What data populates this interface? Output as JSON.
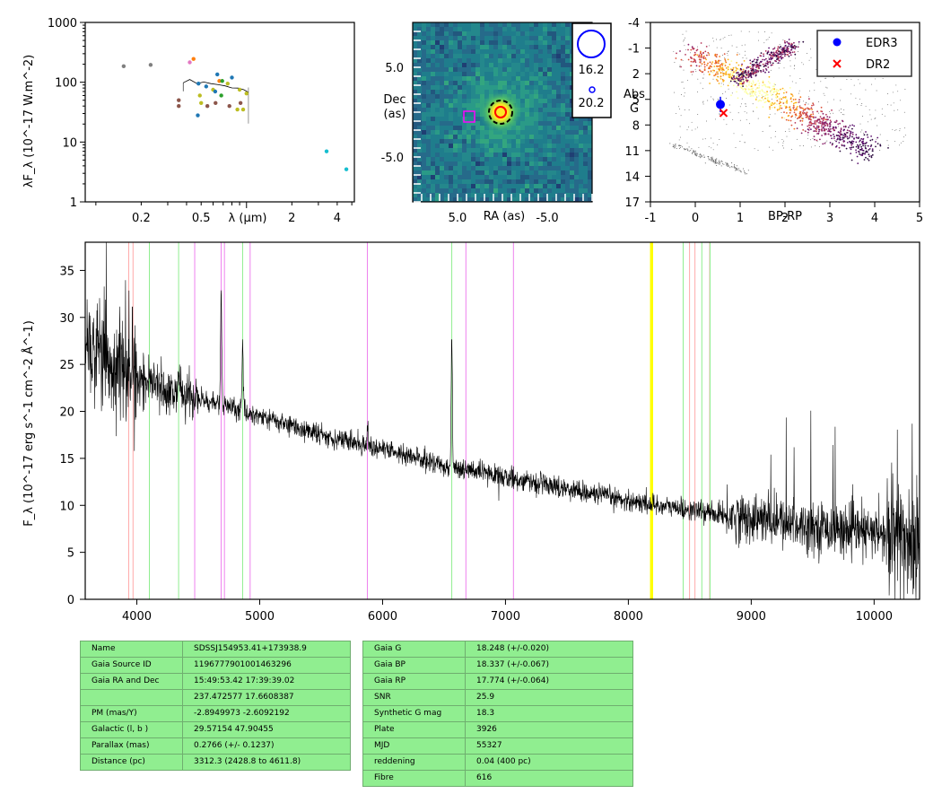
{
  "chart_data": [
    {
      "type": "scatter",
      "id": "sed",
      "title": "",
      "xlabel": "λ (μm)",
      "ylabel": "λF_λ (10^-17 W.m^-2)",
      "xscale": "log",
      "yscale": "log",
      "xlim": [
        0.085,
        5.2
      ],
      "ylim": [
        1,
        1000
      ],
      "xticks": [
        {
          "v": 0.2,
          "label": "0.2"
        },
        {
          "v": 0.5,
          "label": "0.5"
        },
        {
          "v": 2,
          "label": "2"
        },
        {
          "v": 4,
          "label": "4"
        }
      ],
      "yticks": [
        {
          "v": 1,
          "label": "1"
        },
        {
          "v": 10,
          "label": "10"
        },
        {
          "v": 100,
          "label": "100"
        },
        {
          "v": 1000,
          "label": "1000"
        }
      ],
      "points": [
        {
          "x": 0.153,
          "y": 185,
          "color": "#7f7f7f"
        },
        {
          "x": 0.231,
          "y": 195,
          "color": "#7f7f7f"
        },
        {
          "x": 0.355,
          "y": 50,
          "color": "#8c564b"
        },
        {
          "x": 0.355,
          "y": 40,
          "color": "#8c564b"
        },
        {
          "x": 0.42,
          "y": 215,
          "color": "#e377c2"
        },
        {
          "x": 0.445,
          "y": 245,
          "color": "#ff7f0e"
        },
        {
          "x": 0.475,
          "y": 28,
          "color": "#1f77b4"
        },
        {
          "x": 0.48,
          "y": 95,
          "color": "#1f77b4"
        },
        {
          "x": 0.49,
          "y": 60,
          "color": "#bcbd22"
        },
        {
          "x": 0.5,
          "y": 45,
          "color": "#bcbd22"
        },
        {
          "x": 0.54,
          "y": 85,
          "color": "#1f77b4"
        },
        {
          "x": 0.55,
          "y": 40,
          "color": "#8c564b"
        },
        {
          "x": 0.6,
          "y": 75,
          "color": "#bcbd22"
        },
        {
          "x": 0.62,
          "y": 70,
          "color": "#1f77b4"
        },
        {
          "x": 0.623,
          "y": 45,
          "color": "#8c564b"
        },
        {
          "x": 0.64,
          "y": 135,
          "color": "#1f77b4"
        },
        {
          "x": 0.66,
          "y": 105,
          "color": "#ff7f0e"
        },
        {
          "x": 0.68,
          "y": 60,
          "color": "#2ca02c"
        },
        {
          "x": 0.69,
          "y": 105,
          "color": "#2ca02c"
        },
        {
          "x": 0.75,
          "y": 95,
          "color": "#bcbd22"
        },
        {
          "x": 0.77,
          "y": 40,
          "color": "#8c564b"
        },
        {
          "x": 0.8,
          "y": 120,
          "color": "#1f77b4"
        },
        {
          "x": 0.87,
          "y": 35,
          "color": "#bcbd22"
        },
        {
          "x": 0.9,
          "y": 75,
          "color": "#bcbd22"
        },
        {
          "x": 0.913,
          "y": 45,
          "color": "#8c564b"
        },
        {
          "x": 0.95,
          "y": 35,
          "color": "#bcbd22"
        },
        {
          "x": 1.0,
          "y": 65,
          "color": "#bcbd22"
        },
        {
          "x": 3.4,
          "y": 7,
          "color": "#17becf"
        },
        {
          "x": 4.6,
          "y": 3.5,
          "color": "#17becf"
        }
      ],
      "line_series": [
        {
          "x": 0.38,
          "y": 98
        },
        {
          "x": 0.42,
          "y": 110
        },
        {
          "x": 0.47,
          "y": 96
        },
        {
          "x": 0.52,
          "y": 100
        },
        {
          "x": 0.58,
          "y": 92
        },
        {
          "x": 0.65,
          "y": 90
        },
        {
          "x": 0.72,
          "y": 86
        },
        {
          "x": 0.8,
          "y": 82
        },
        {
          "x": 0.88,
          "y": 78
        },
        {
          "x": 0.96,
          "y": 74
        },
        {
          "x": 1.03,
          "y": 68
        }
      ]
    },
    {
      "type": "heatmap",
      "id": "cutout",
      "xlabel": "RA (as)",
      "ylabel": "Dec\n(as)",
      "xlim": [
        10,
        -10
      ],
      "ylim": [
        -10,
        10
      ],
      "xticks": [
        {
          "v": 5,
          "label": "5.0"
        },
        {
          "v": -5,
          "label": "-5.0"
        }
      ],
      "yticks": [
        {
          "v": 5,
          "label": "5.0"
        },
        {
          "v": -5,
          "label": "-5.0"
        }
      ],
      "source": {
        "x": 0.2,
        "y": 0
      },
      "legend": [
        {
          "label": "16.2",
          "size": "large"
        },
        {
          "label": "20.2",
          "size": "small"
        }
      ]
    },
    {
      "type": "scatter",
      "id": "hrd",
      "xlabel": "BP-RP",
      "ylabel": "Abs\nG",
      "xlim": [
        -1,
        5
      ],
      "ylim": [
        17,
        -4
      ],
      "xticks": [
        {
          "v": -1,
          "label": "-1"
        },
        {
          "v": 0,
          "label": "0"
        },
        {
          "v": 1,
          "label": "1"
        },
        {
          "v": 2,
          "label": "2"
        },
        {
          "v": 3,
          "label": "3"
        },
        {
          "v": 4,
          "label": "4"
        },
        {
          "v": 5,
          "label": "5"
        }
      ],
      "yticks": [
        {
          "v": -4,
          "label": "-4"
        },
        {
          "v": -1,
          "label": "-1"
        },
        {
          "v": 2,
          "label": "2"
        },
        {
          "v": 5,
          "label": "5"
        },
        {
          "v": 8,
          "label": "8"
        },
        {
          "v": 11,
          "label": "11"
        },
        {
          "v": 14,
          "label": "14"
        },
        {
          "v": 17,
          "label": "17"
        }
      ],
      "legend_position": "top-right",
      "series": [
        {
          "name": "EDR3",
          "marker": "circle",
          "color": "#0000ff",
          "x": 0.56,
          "y": 5.6,
          "err": 0.9
        },
        {
          "name": "DR2",
          "marker": "x",
          "color": "#ff0000",
          "x": 0.63,
          "y": 6.6
        }
      ]
    },
    {
      "type": "line",
      "id": "spectrum",
      "xlabel": "",
      "ylabel": "F_λ (10^-17 erg s^-1 cm^-2 Å^-1)",
      "xlim": [
        3580,
        10370
      ],
      "ylim": [
        0,
        38
      ],
      "xticks": [
        4000,
        5000,
        6000,
        7000,
        8000,
        9000,
        10000
      ],
      "yticks": [
        0,
        5,
        10,
        15,
        20,
        25,
        30,
        35
      ],
      "continuum": [
        {
          "x": 3580,
          "y": 27
        },
        {
          "x": 3800,
          "y": 25
        },
        {
          "x": 4000,
          "y": 23.5
        },
        {
          "x": 4300,
          "y": 22
        },
        {
          "x": 4600,
          "y": 21
        },
        {
          "x": 5000,
          "y": 19.5
        },
        {
          "x": 5500,
          "y": 17.5
        },
        {
          "x": 6000,
          "y": 16
        },
        {
          "x": 6500,
          "y": 14.2
        },
        {
          "x": 7000,
          "y": 13
        },
        {
          "x": 7500,
          "y": 11.8
        },
        {
          "x": 8000,
          "y": 10.5
        },
        {
          "x": 8500,
          "y": 9.5
        },
        {
          "x": 9000,
          "y": 8.6
        },
        {
          "x": 9500,
          "y": 7.8
        },
        {
          "x": 10000,
          "y": 7
        },
        {
          "x": 10370,
          "y": 6
        }
      ],
      "emission_lines": [
        {
          "x": 4686,
          "h": 12
        },
        {
          "x": 4861,
          "h": 7
        },
        {
          "x": 6563,
          "h": 14
        },
        {
          "x": 4340,
          "h": 3
        },
        {
          "x": 5876,
          "h": 2
        }
      ],
      "vlines": [
        {
          "x": 3934,
          "color": "#ffaaaa"
        },
        {
          "x": 3969,
          "color": "#ffaaaa"
        },
        {
          "x": 4102,
          "color": "#90ee90"
        },
        {
          "x": 4340,
          "color": "#90ee90"
        },
        {
          "x": 4471,
          "color": "#ee82ee"
        },
        {
          "x": 4686,
          "color": "#ee82ee"
        },
        {
          "x": 4713,
          "color": "#ee82ee"
        },
        {
          "x": 4861,
          "color": "#90ee90"
        },
        {
          "x": 4922,
          "color": "#ee82ee"
        },
        {
          "x": 5876,
          "color": "#ee82ee"
        },
        {
          "x": 6563,
          "color": "#90ee90"
        },
        {
          "x": 6678,
          "color": "#ee82ee"
        },
        {
          "x": 7065,
          "color": "#ee82ee"
        },
        {
          "x": 8183,
          "color": "#ffff00"
        },
        {
          "x": 8195,
          "color": "#ffff00"
        },
        {
          "x": 8446,
          "color": "#90ee90"
        },
        {
          "x": 8498,
          "color": "#ffaaaa"
        },
        {
          "x": 8542,
          "color": "#ffaaaa"
        },
        {
          "x": 8598,
          "color": "#90ee90"
        },
        {
          "x": 8662,
          "color": "#ffaaaa"
        },
        {
          "x": 8665,
          "color": "#90ee90"
        }
      ]
    }
  ],
  "tables": {
    "left": [
      {
        "k": "Name",
        "v": "SDSSJ154953.41+173938.9"
      },
      {
        "k": "Gaia Source ID",
        "v": "1196777901001463296"
      },
      {
        "k": "Gaia RA and Dec",
        "v": "15:49:53.42    17:39:39.02"
      },
      {
        "k": "",
        "v": "237.472577    17.6608387"
      },
      {
        "k": "PM (mas/Y)",
        "v": "-2.8949973    -2.6092192"
      },
      {
        "k": "Galactic (l, b )",
        "v": "29.57154    47.90455"
      },
      {
        "k": "Parallax (mas)",
        "v": "0.2766 (+/- 0.1237)"
      },
      {
        "k": "Distance (pc)",
        "v": "3312.3 (2428.8 to 4611.8)"
      }
    ],
    "right": [
      {
        "k": "Gaia G",
        "v": "18.248 (+/-0.020)"
      },
      {
        "k": "Gaia BP",
        "v": "18.337 (+/-0.067)"
      },
      {
        "k": "Gaia RP",
        "v": "17.774 (+/-0.064)"
      },
      {
        "k": "SNR",
        "v": "25.9"
      },
      {
        "k": "Synthetic G mag",
        "v": "18.3"
      },
      {
        "k": "Plate",
        "v": "3926"
      },
      {
        "k": "MJD",
        "v": "55327"
      },
      {
        "k": "reddening",
        "v": "0.04 (400 pc)"
      },
      {
        "k": "Fibre",
        "v": "616"
      }
    ]
  }
}
